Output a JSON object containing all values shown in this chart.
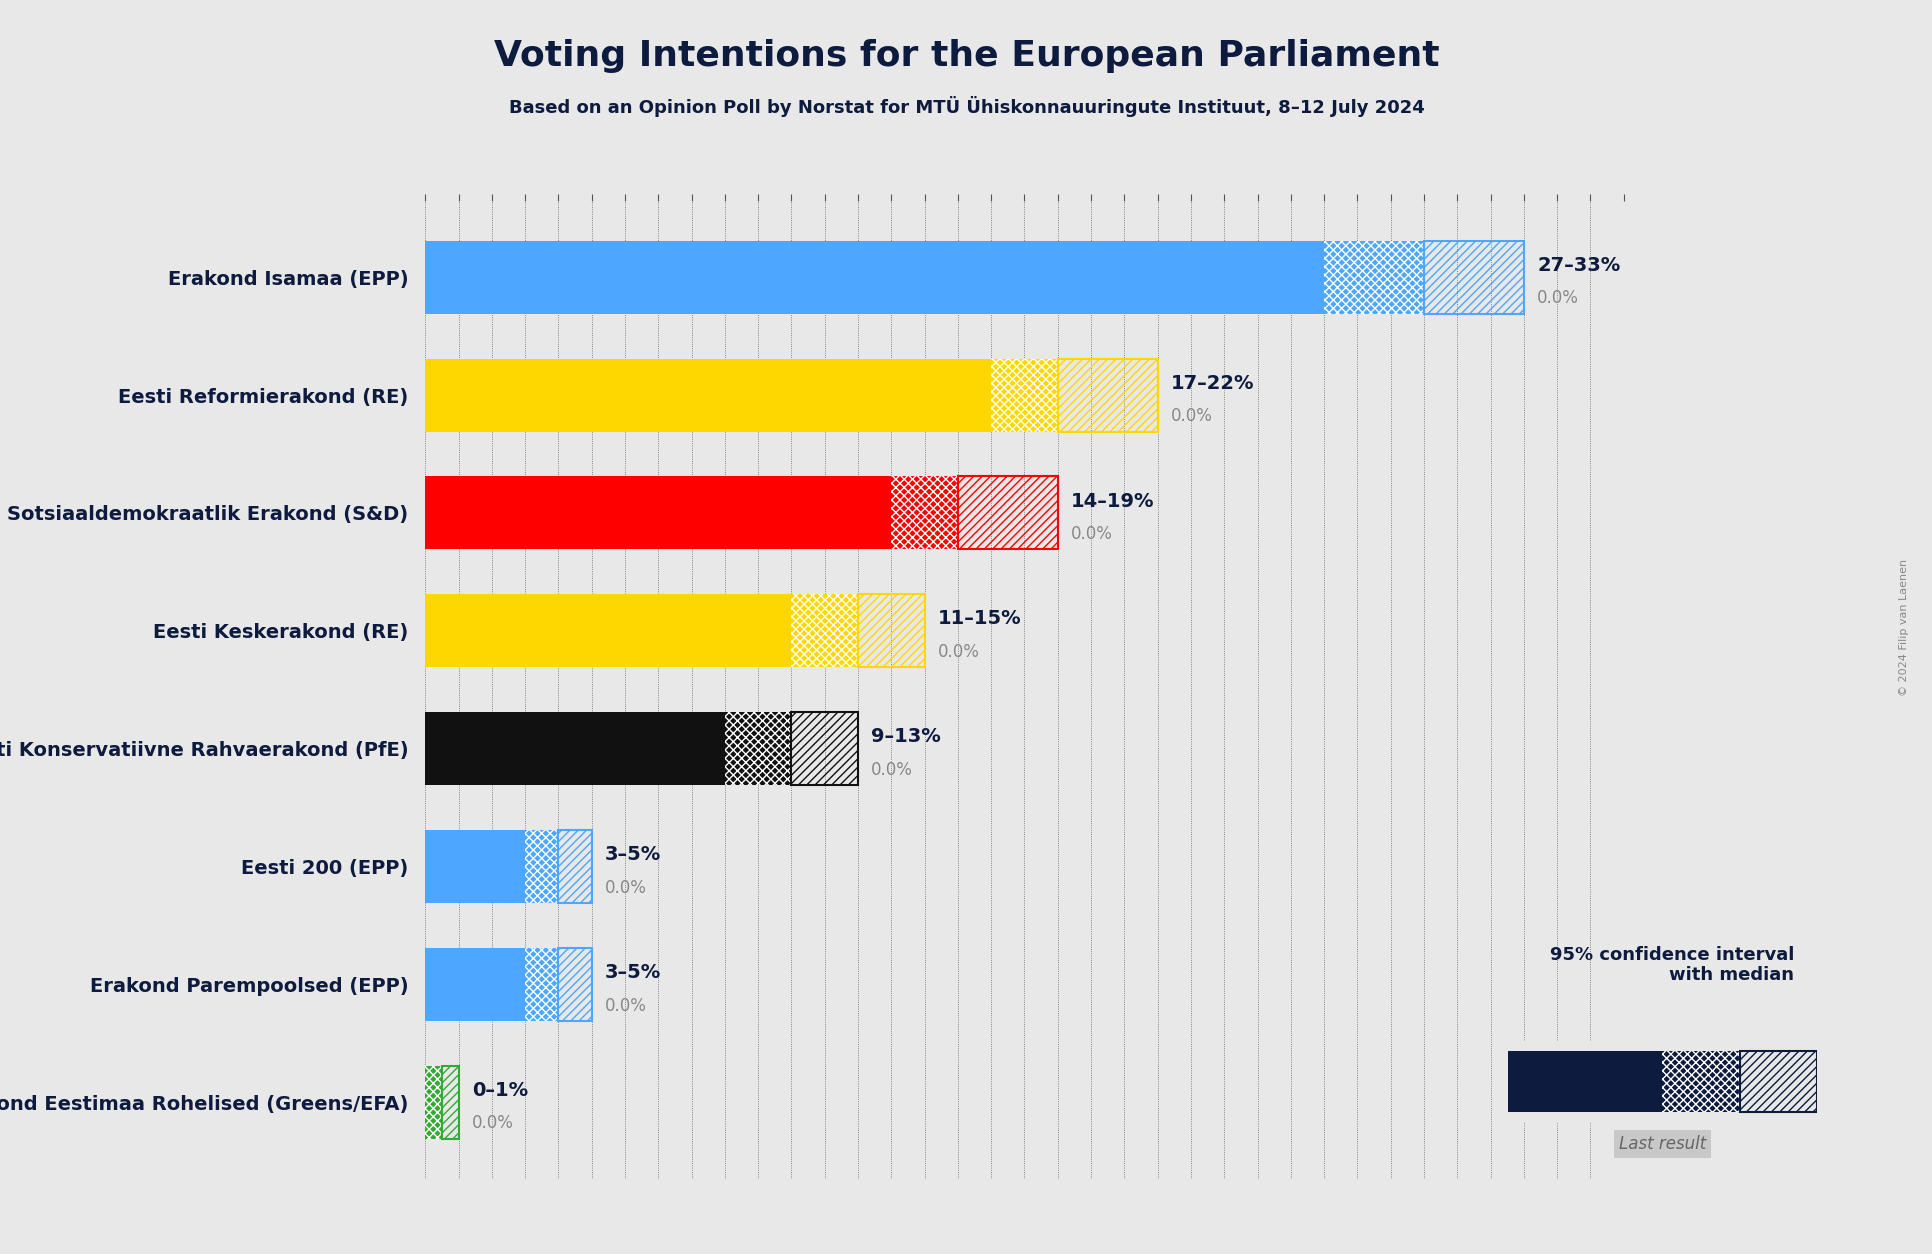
{
  "title": "Voting Intentions for the European Parliament",
  "subtitle": "Based on an Opinion Poll by Norstat for MTÜ Ühiskonnauuringute Instituut, 8–12 July 2024",
  "copyright": "© 2024 Filip van Laenen",
  "background_color": "#e8e8e8",
  "parties": [
    {
      "name": "Erakond Isamaa (EPP)",
      "low": 27,
      "median": 30,
      "high": 33,
      "last": 0.0,
      "color": "#4da6ff"
    },
    {
      "name": "Eesti Reformierakond (RE)",
      "low": 17,
      "median": 19,
      "high": 22,
      "last": 0.0,
      "color": "#FFD700"
    },
    {
      "name": "Sotsiaaldemokraatlik Erakond (S&D)",
      "low": 14,
      "median": 16,
      "high": 19,
      "last": 0.0,
      "color": "#FF0000"
    },
    {
      "name": "Eesti Keskerakond (RE)",
      "low": 11,
      "median": 13,
      "high": 15,
      "last": 0.0,
      "color": "#FFD700"
    },
    {
      "name": "Eesti Konservatiivne Rahvaerakond (PfE)",
      "low": 9,
      "median": 11,
      "high": 13,
      "last": 0.0,
      "color": "#111111"
    },
    {
      "name": "Eesti 200 (EPP)",
      "low": 3,
      "median": 4,
      "high": 5,
      "last": 0.0,
      "color": "#4da6ff"
    },
    {
      "name": "Erakond Parempoolsed (EPP)",
      "low": 3,
      "median": 4,
      "high": 5,
      "last": 0.0,
      "color": "#4da6ff"
    },
    {
      "name": "Erakond Eestimaa Rohelised (Greens/EFA)",
      "low": 0,
      "median": 0.5,
      "high": 1,
      "last": 0.0,
      "color": "#33aa33"
    }
  ],
  "range_labels": [
    "27–33%",
    "17–22%",
    "14–19%",
    "11–15%",
    "9–13%",
    "3–5%",
    "3–5%",
    "0–1%"
  ],
  "xlim": [
    0,
    36
  ],
  "bar_height": 0.62,
  "label_color": "#0d1b3e",
  "gray_text": "#888888",
  "legend_color": "#0d1b3e"
}
